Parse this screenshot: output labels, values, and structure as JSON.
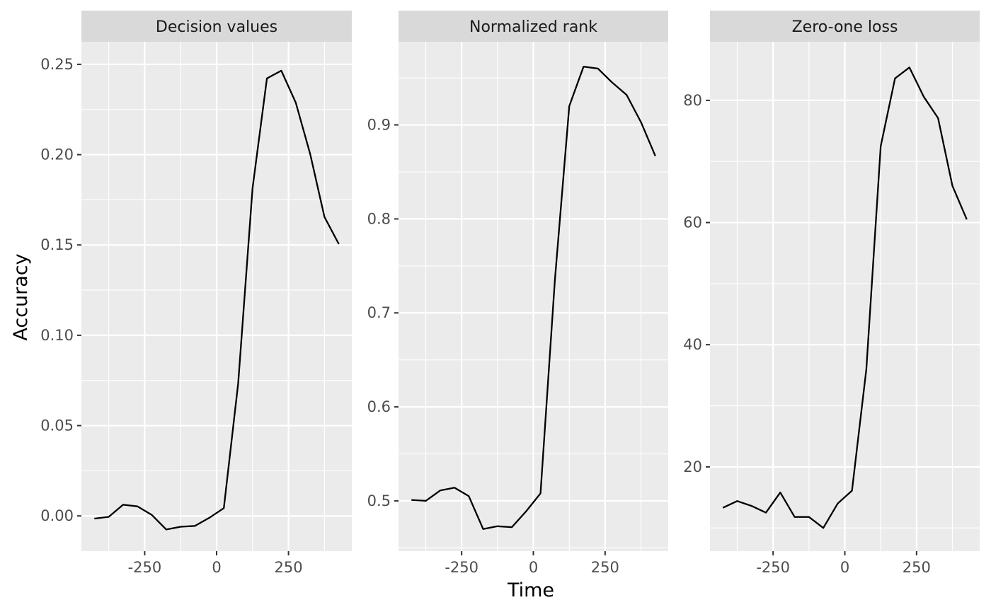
{
  "chart_data": {
    "type": "line",
    "xlabel": "Time",
    "ylabel": "Accuracy",
    "grid": true,
    "facet_layout": "1 row x 3 columns, free y scales",
    "line_color": "#000000",
    "panel_background": "#ebebeb",
    "strip_background": "#d9d9d9",
    "grid_color": "#ffffff",
    "x": [
      -425,
      -375,
      -325,
      -275,
      -225,
      -175,
      -125,
      -75,
      -25,
      25,
      75,
      125,
      175,
      225,
      275,
      325,
      375,
      425
    ],
    "xlim": [
      -470,
      470
    ],
    "xticks": [
      -250,
      0,
      250
    ],
    "xtick_labels": [
      "-250",
      "0",
      "250"
    ],
    "panels": [
      {
        "title": "Decision values",
        "values": [
          -0.0015,
          -0.0005,
          0.0062,
          0.0053,
          0.0005,
          -0.0075,
          -0.006,
          -0.0055,
          -0.001,
          0.0043,
          0.0735,
          0.1815,
          0.2422,
          0.2465,
          0.2288,
          0.2005,
          0.1655,
          0.1505
        ],
        "ylim": [
          -0.0195,
          0.2625
        ],
        "yticks": [
          0.0,
          0.05,
          0.1,
          0.15,
          0.2,
          0.25
        ],
        "ytick_labels": [
          "0.00",
          "0.05",
          "0.10",
          "0.15",
          "0.20",
          "0.25"
        ]
      },
      {
        "title": "Normalized rank",
        "values": [
          0.501,
          0.5,
          0.511,
          0.514,
          0.505,
          0.47,
          0.473,
          0.472,
          0.489,
          0.508,
          0.735,
          0.92,
          0.962,
          0.96,
          0.945,
          0.932,
          0.903,
          0.867
        ],
        "ylim": [
          0.4465,
          0.9885
        ],
        "yticks": [
          0.5,
          0.6,
          0.7,
          0.8,
          0.9
        ],
        "ytick_labels": [
          "0.5",
          "0.6",
          "0.7",
          "0.8",
          "0.9"
        ]
      },
      {
        "title": "Zero-one loss",
        "values": [
          13.3,
          14.4,
          13.6,
          12.5,
          15.8,
          11.8,
          11.8,
          10.0,
          14.0,
          16.1,
          36.0,
          72.5,
          83.6,
          85.4,
          80.6,
          77.1,
          66.0,
          60.5
        ],
        "ylim": [
          6.2,
          89.6
        ],
        "yticks": [
          20,
          40,
          60,
          80
        ],
        "ytick_labels": [
          "20",
          "40",
          "60",
          "80"
        ]
      }
    ]
  }
}
